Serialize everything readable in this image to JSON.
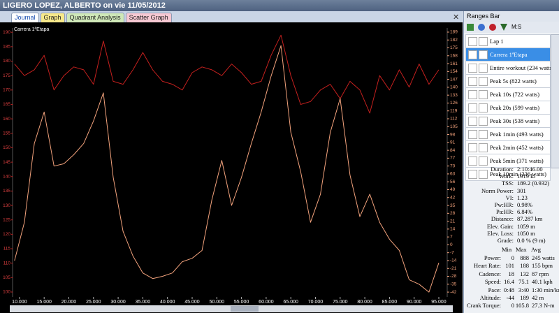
{
  "window_title": "LIGERO LOPEZ, ALBERTO on vie 11/05/2012",
  "tabs": [
    "Journal",
    "Graph",
    "Quadrant Analysis",
    "Scatter Graph"
  ],
  "chart_data": {
    "type": "line",
    "title": "Carrera 1ªEtapa",
    "x": [
      9,
      11,
      13,
      15,
      17,
      19,
      21,
      23,
      25,
      27,
      29,
      31,
      33,
      35,
      37,
      39,
      41,
      43,
      45,
      47,
      49,
      51,
      53,
      55,
      57,
      59,
      61,
      63,
      65,
      67,
      69,
      71,
      73,
      75,
      77,
      79,
      81,
      83,
      85,
      87,
      89,
      91,
      93,
      95
    ],
    "series": [
      {
        "color": "#c4201e",
        "values": [
          179,
          175,
          177,
          182,
          170,
          175,
          178,
          177,
          172,
          187,
          173,
          172,
          177,
          183,
          177,
          173,
          172,
          170,
          176,
          178,
          177,
          175,
          179,
          176,
          172,
          173,
          182,
          189,
          175,
          165,
          166,
          170,
          172,
          167,
          173,
          170,
          162,
          175,
          170,
          177,
          171,
          179,
          172,
          177
        ]
      },
      {
        "color": "#f2a27c",
        "axis": "y2",
        "values": [
          -14,
          20,
          90,
          118,
          70,
          72,
          80,
          90,
          110,
          135,
          60,
          12,
          -10,
          -25,
          -30,
          -28,
          -25,
          -15,
          -12,
          -5,
          40,
          75,
          35,
          60,
          90,
          118,
          150,
          177,
          100,
          65,
          20,
          45,
          100,
          130,
          62,
          25,
          45,
          20,
          5,
          -5,
          -31,
          -35,
          -42,
          -16
        ]
      }
    ],
    "xlim": [
      8.6,
      96.7
    ],
    "xticks": [
      {
        "value": 10,
        "label": "10.000"
      },
      {
        "value": 15,
        "label": "15.000"
      },
      {
        "value": 20,
        "label": "20.000"
      },
      {
        "value": 25,
        "label": "25.000"
      },
      {
        "value": 30,
        "label": "30.000"
      },
      {
        "value": 35,
        "label": "35.000"
      },
      {
        "value": 40,
        "label": "40.000"
      },
      {
        "value": 45,
        "label": "45.000"
      },
      {
        "value": 50,
        "label": "50.000"
      },
      {
        "value": 55,
        "label": "55.000"
      },
      {
        "value": 60,
        "label": "60.000"
      },
      {
        "value": 65,
        "label": "65.000"
      },
      {
        "value": 70,
        "label": "70.000"
      },
      {
        "value": 75,
        "label": "75.000"
      },
      {
        "value": 80,
        "label": "80.000"
      },
      {
        "value": 85,
        "label": "85.000"
      },
      {
        "value": 90,
        "label": "90.000"
      },
      {
        "value": 95,
        "label": "95.000"
      }
    ],
    "ylim": [
      98.3,
      191.5
    ],
    "yticks": [
      190,
      185,
      180,
      175,
      170,
      165,
      160,
      155,
      150,
      145,
      140,
      135,
      130,
      125,
      120,
      115,
      110,
      105,
      100
    ],
    "y2lim": [
      -46.3,
      192.7
    ],
    "y2ticks": [
      189,
      182,
      175,
      168,
      161,
      154,
      147,
      140,
      133,
      126,
      119,
      112,
      105,
      98,
      91,
      84,
      77,
      70,
      63,
      56,
      49,
      42,
      35,
      28,
      21,
      14,
      7,
      0,
      -7,
      -14,
      -21,
      -28,
      -35,
      -42
    ],
    "grid": false
  },
  "ranges_bar": {
    "title": "Ranges Bar",
    "units": "M:S",
    "items": [
      "Lap 1",
      "Carrera 1ªEtapa",
      "Entire workout (234 watts)",
      "Peak 5s (822 watts)",
      "Peak 10s (722 watts)",
      "Peak 20s (599 watts)",
      "Peak 30s (538 watts)",
      "Peak 1min (493 watts)",
      "Peak 2min (452 watts)",
      "Peak 5min (371 watts)",
      "Peak 10min (336 watts)"
    ]
  },
  "stats": [
    [
      "Duration:",
      "2:10:46.00"
    ],
    [
      "Work:",
      "1919 kJ"
    ],
    [
      "TSS:",
      "189.2 (0.932)"
    ],
    [
      "Norm Power:",
      "301"
    ],
    [
      "VI:",
      "1.23"
    ],
    [
      "Pw:HR:",
      "0.98%"
    ],
    [
      "Pa:HR:",
      "6.84%"
    ],
    [
      "Distance:",
      "87.287 km"
    ],
    [
      "Elev. Gain:",
      "1059 m"
    ],
    [
      "Elev. Loss:",
      "1050 m"
    ],
    [
      "Grade:",
      "0.0 % (9 m)"
    ]
  ],
  "table": {
    "columns": [
      "Min",
      "Max",
      "Avg"
    ],
    "rows": [
      [
        "Power:",
        "0",
        "888",
        "245 watts"
      ],
      [
        "Heart Rate:",
        "101",
        "188",
        "155 bpm"
      ],
      [
        "Cadence:",
        "18",
        "132",
        "87 rpm"
      ],
      [
        "Speed:",
        "16.4",
        "75.1",
        "40.1 kph"
      ],
      [
        "Pace:",
        "0:48",
        "3:40",
        "1:30 min/km"
      ],
      [
        "Altitude:",
        "-44",
        "189",
        "42 m"
      ],
      [
        "Crank Torque:",
        "0",
        "105.8",
        "27.3 N-m"
      ]
    ]
  }
}
